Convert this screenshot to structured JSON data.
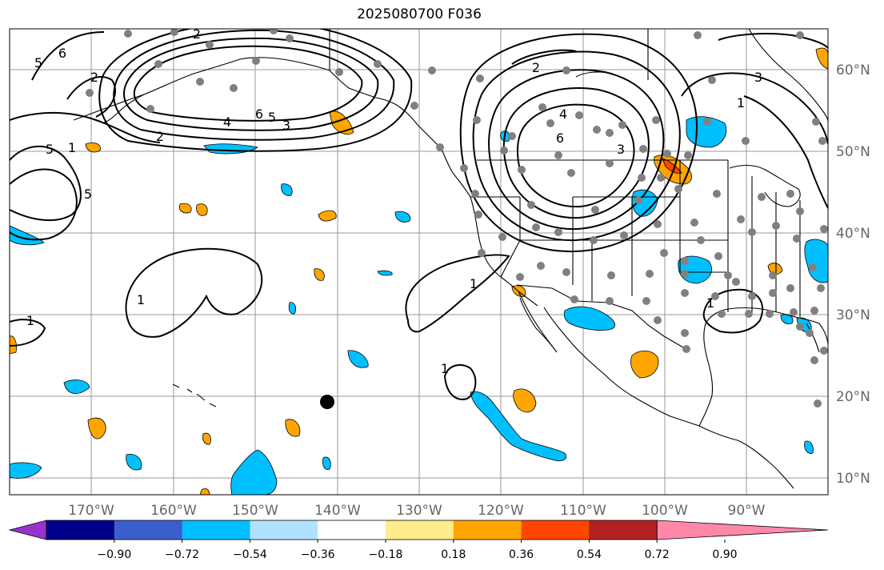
{
  "title": "2025080700 F036",
  "map": {
    "lat_labels": [
      "60°N",
      "50°N",
      "40°N",
      "30°N",
      "20°N",
      "10°N"
    ],
    "lon_labels": [
      "170°W",
      "160°W",
      "150°W",
      "140°W",
      "130°W",
      "120°W",
      "110°W",
      "100°W",
      "90°W"
    ],
    "contour_labels": [
      "2",
      "6",
      "5",
      "2",
      "6",
      "5",
      "3",
      "4",
      "2",
      "5",
      "5",
      "1",
      "1",
      "1",
      "1",
      "1",
      "2",
      "4",
      "6",
      "3",
      "3",
      "4",
      "6",
      "1",
      "1"
    ]
  },
  "colorbar": {
    "colors": [
      "#9932cc",
      "#00008b",
      "#3a5fcd",
      "#00bfff",
      "#b0e2ff",
      "#ffffff",
      "#ffec8b",
      "#ffa500",
      "#ff4500",
      "#b22222",
      "#ff88aa"
    ],
    "tick_labels": [
      "−0.90",
      "−0.72",
      "−0.54",
      "−0.36",
      "−0.18",
      "0.18",
      "0.36",
      "0.54",
      "0.72",
      "0.90"
    ]
  }
}
